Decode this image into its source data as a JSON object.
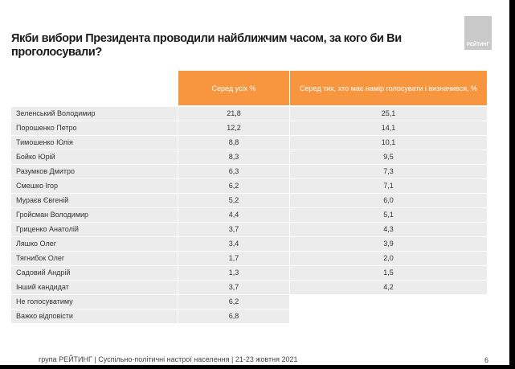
{
  "title": "Якби вибори Президента проводили найближчим часом, за кого би Ви проголосували?",
  "logo_text": "РЕЙТИНГ",
  "table": {
    "headers": [
      "",
      "Серед усіх %",
      "Серед тих, хто має намір голосувати і визначився, %"
    ],
    "rows": [
      {
        "name": "Зеленський Володимир",
        "all": "21,8",
        "decided": "25,1"
      },
      {
        "name": "Порошенко Петро",
        "all": "12,2",
        "decided": "14,1"
      },
      {
        "name": "Тимошенко Юлія",
        "all": "8,8",
        "decided": "10,1"
      },
      {
        "name": "Бойко Юрій",
        "all": "8,3",
        "decided": "9,5"
      },
      {
        "name": "Разумков Дмитро",
        "all": "6,3",
        "decided": "7,3"
      },
      {
        "name": "Смешко Ігор",
        "all": "6,2",
        "decided": "7,1"
      },
      {
        "name": "Мураєв Євгеній",
        "all": "5,2",
        "decided": "6,0"
      },
      {
        "name": "Гройсман Володимир",
        "all": "4,4",
        "decided": "5,1"
      },
      {
        "name": "Гриценко Анатолій",
        "all": "3,7",
        "decided": "4,3"
      },
      {
        "name": "Ляшко Олег",
        "all": "3,4",
        "decided": "3,9"
      },
      {
        "name": "Тягнибок Олег",
        "all": "1,7",
        "decided": "2,0"
      },
      {
        "name": "Садовий Андрій",
        "all": "1,3",
        "decided": "1,5"
      },
      {
        "name": "Інший кандидат",
        "all": "3,7",
        "decided": "4,2"
      },
      {
        "name": "Не голосуватиму",
        "all": "6,2",
        "decided": null
      },
      {
        "name": "Важко відповісти",
        "all": "6,8",
        "decided": null
      }
    ]
  },
  "footer": "група РЕЙТИНГ | Суспільно-політичні настрої населення  | 21-23 жовтня 2021",
  "page_number": "6",
  "colors": {
    "header": "#f7963f",
    "row": "#ececec"
  }
}
